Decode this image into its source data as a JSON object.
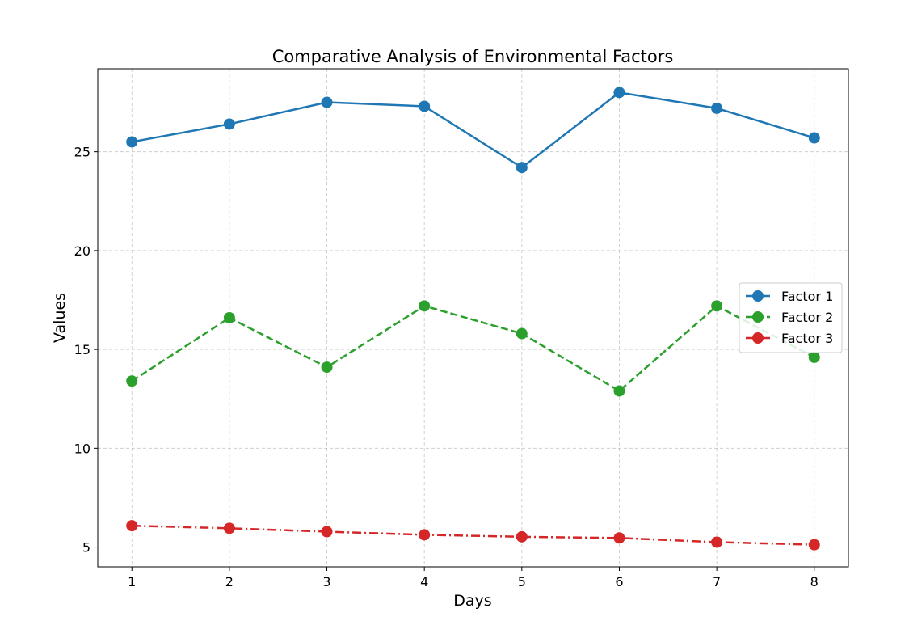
{
  "chart_data": {
    "type": "line",
    "title": "Comparative Analysis of Environmental Factors",
    "xlabel": "Days",
    "ylabel": "Values",
    "x": [
      1,
      2,
      3,
      4,
      5,
      6,
      7,
      8
    ],
    "xlim": [
      0.65,
      8.35
    ],
    "ylim": [
      4.0,
      29.2
    ],
    "yticks": [
      5,
      10,
      15,
      20,
      25
    ],
    "grid": true,
    "legend_position": "center-right",
    "series": [
      {
        "name": "Factor 1",
        "color": "#1f77b4",
        "line_style": "solid",
        "marker": "circle",
        "values": [
          25.5,
          26.4,
          27.5,
          27.3,
          24.2,
          28.0,
          27.2,
          25.7
        ]
      },
      {
        "name": "Factor 2",
        "color": "#2ca02c",
        "line_style": "dashed",
        "marker": "circle",
        "values": [
          13.4,
          16.6,
          14.1,
          17.2,
          15.8,
          12.9,
          17.2,
          14.6
        ]
      },
      {
        "name": "Factor 3",
        "color": "#d62728",
        "line_style": "dashdot",
        "marker": "circle",
        "values": [
          6.08,
          5.95,
          5.78,
          5.62,
          5.52,
          5.46,
          5.25,
          5.12
        ]
      }
    ]
  }
}
